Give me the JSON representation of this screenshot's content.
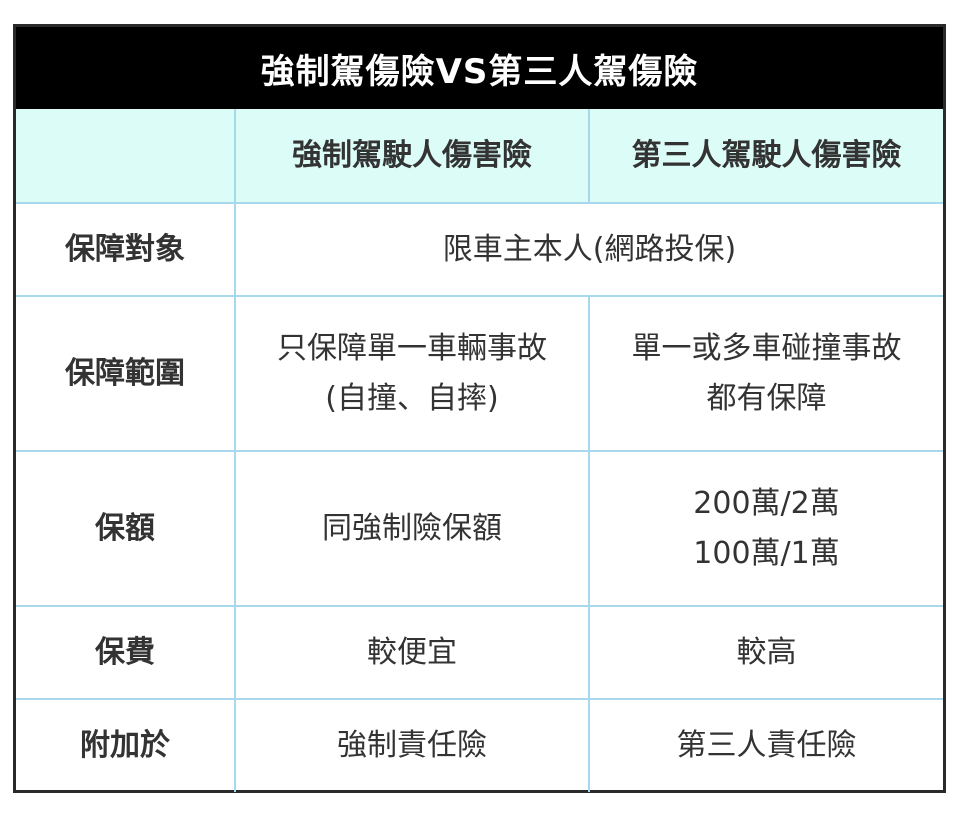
{
  "title": "強制駕傷險VS第三人駕傷險",
  "header": [
    "",
    "強制駕駛人傷害險",
    "第三人駕駛人傷害險"
  ],
  "rows": [
    {
      "label": "保障對象",
      "merged": "限車主本人(網路投保)"
    },
    {
      "label": "保障範圍",
      "col1": [
        "只保障單一車輛事故",
        "(自撞、自摔)"
      ],
      "col2": [
        "單一或多車碰撞事故",
        "都有保障"
      ]
    },
    {
      "label": "保額",
      "col1": [
        "同強制險保額"
      ],
      "col2": [
        "200萬/2萬",
        "100萬/1萬"
      ]
    },
    {
      "label": "保費",
      "col1": [
        "較便宜"
      ],
      "col2": [
        "較高"
      ]
    },
    {
      "label": "附加於",
      "col1": [
        "強制責任險"
      ],
      "col2": [
        "第三人責任險"
      ]
    }
  ],
  "colors": {
    "title_bg": "#000000",
    "header_bg": "#dcfdf7",
    "grid": "#a8d8ec"
  }
}
